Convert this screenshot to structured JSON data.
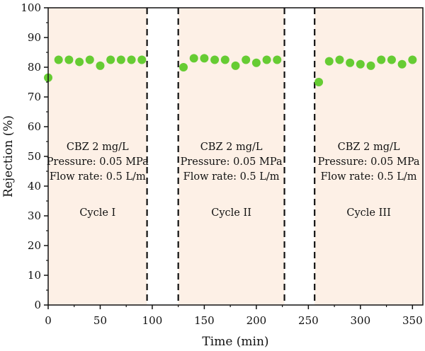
{
  "chart_data": {
    "type": "scatter",
    "xlabel": "Time (min)",
    "ylabel": "Rejection (%)",
    "xlim": [
      0,
      360
    ],
    "ylim": [
      0,
      100
    ],
    "xticks": [
      0,
      50,
      100,
      150,
      200,
      250,
      300,
      350
    ],
    "yticks": [
      0,
      10,
      20,
      30,
      40,
      50,
      60,
      70,
      80,
      90,
      100
    ],
    "marker_color": "#66cc33",
    "shade_color": "#fdf0e6",
    "cycles": [
      {
        "range": [
          0,
          95
        ],
        "label": "Cycle I",
        "lines": [
          "CBZ 2 mg/L",
          "Pressure: 0.05 MPa",
          "Flow rate: 0.5 L/m"
        ]
      },
      {
        "range": [
          125,
          227
        ],
        "label": "Cycle II",
        "lines": [
          "CBZ 2 mg/L",
          "Pressure: 0.05 MPa",
          "Flow rate: 0.5 L/m"
        ]
      },
      {
        "range": [
          256,
          360
        ],
        "label": "Cycle III",
        "lines": [
          "CBZ 2 mg/L",
          "Pressure: 0.05 MPa",
          "Flow rate: 0.5 L/m"
        ]
      }
    ],
    "dividers": [
      95,
      125,
      227,
      256
    ],
    "series": [
      {
        "x": [
          0,
          10,
          20,
          30,
          40,
          50,
          60,
          70,
          80,
          90,
          130,
          140,
          150,
          160,
          170,
          180,
          190,
          200,
          210,
          220,
          260,
          270,
          280,
          290,
          300,
          310,
          320,
          330,
          340,
          350
        ],
        "values": [
          76.5,
          82.5,
          82.5,
          81.8,
          82.5,
          80.5,
          82.5,
          82.5,
          82.5,
          82.5,
          80.0,
          83.0,
          83.0,
          82.5,
          82.5,
          80.5,
          82.5,
          81.5,
          82.5,
          82.5,
          75.0,
          82.0,
          82.5,
          81.5,
          81.0,
          80.5,
          82.5,
          82.5,
          81.0,
          82.5
        ]
      }
    ]
  }
}
